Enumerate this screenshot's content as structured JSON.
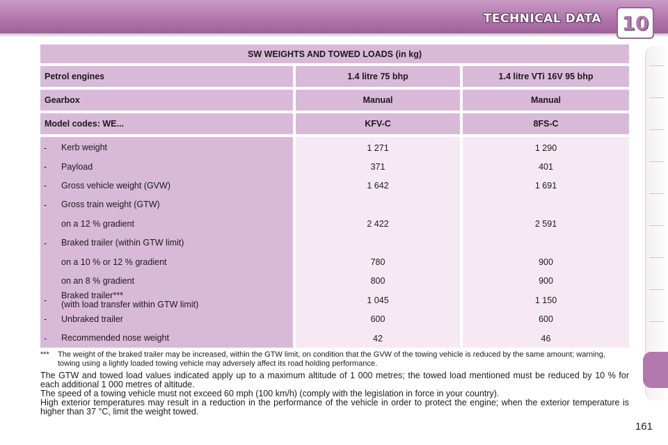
{
  "header": {
    "title": "TECHNICAL DATA",
    "chapter": "10"
  },
  "table": {
    "title": "SW WEIGHTS AND TOWED LOADS (in kg)",
    "header_rows": [
      {
        "label": "Petrol engines",
        "col1": "1.4 litre 75 bhp",
        "col2": "1.4 litre VTi 16V 95 bhp"
      },
      {
        "label": "Gearbox",
        "col1": "Manual",
        "col2": "Manual"
      },
      {
        "label": "Model codes: WE...",
        "col1": "KFV-C",
        "col2": "8FS-C"
      }
    ],
    "rows": [
      {
        "dash": "-",
        "label": "Kerb weight",
        "col1": "1 271",
        "col2": "1 290"
      },
      {
        "dash": "-",
        "label": "Payload",
        "col1": "371",
        "col2": "401"
      },
      {
        "dash": "-",
        "label": "Gross vehicle weight (GVW)",
        "col1": "1 642",
        "col2": "1 691"
      },
      {
        "dash": "-",
        "label": "Gross train weight (GTW)",
        "col1": "",
        "col2": ""
      },
      {
        "dash": "",
        "label": "on a 12 % gradient",
        "col1": "2 422",
        "col2": "2 591"
      },
      {
        "dash": "-",
        "label": "Braked trailer (within GTW limit)",
        "col1": "",
        "col2": ""
      },
      {
        "dash": "",
        "label": "on a 10 % or 12 % gradient",
        "col1": "780",
        "col2": "900"
      },
      {
        "dash": "",
        "label": "on an 8 % gradient",
        "col1": "800",
        "col2": "900"
      },
      {
        "dash": "-",
        "label": "Braked trailer***",
        "label2": "(with load transfer within GTW limit)",
        "col1": "1 045",
        "col2": "1 150"
      },
      {
        "dash": "-",
        "label": "Unbraked trailer",
        "col1": "600",
        "col2": "600"
      },
      {
        "dash": "-",
        "label": "Recommended nose weight",
        "col1": "42",
        "col2": "46"
      }
    ]
  },
  "footnote": {
    "mark": "***",
    "text": "The weight of the braked trailer may be increased, within the GTW limit, on condition that the GVW of the towing vehicle is reduced by the same amount; warning, towing using a lightly loaded towing vehicle may adversely affect its road holding performance."
  },
  "body": [
    "The GTW and towed load values indicated apply up to a maximum altitude of 1 000 metres; the towed load mentioned must be reduced by 10 % for each additional 1 000 metres of altitude.",
    "The speed of a towing vehicle must not exceed 60 mph (100 km/h) (comply with the legislation in force in your country).",
    "High exterior temperatures may result in a reduction in the performance of the vehicle in order to protect the engine; when the exterior temperature is higher than 37 °C, limit the weight towed."
  ],
  "page_number": "161",
  "colors": {
    "accent": "#b277ad",
    "table_header_bg": "#d9b9d8",
    "table_value_bg": "#f6e9f4"
  }
}
